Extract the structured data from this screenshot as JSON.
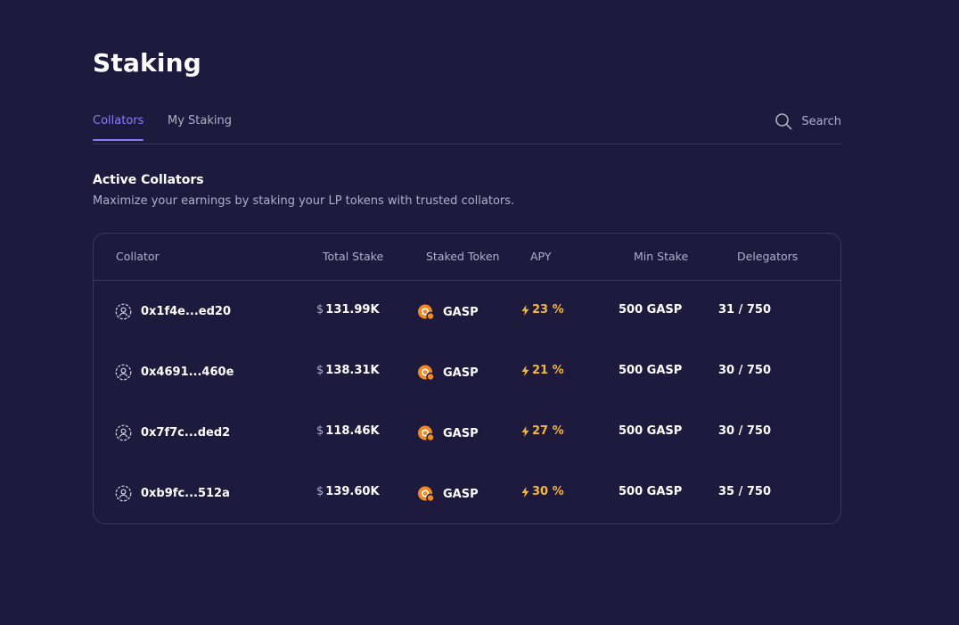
{
  "page": {
    "title": "Staking"
  },
  "tabs": [
    {
      "label": "Collators",
      "active": true
    },
    {
      "label": "My Staking",
      "active": false
    }
  ],
  "search": {
    "label": "Search"
  },
  "section": {
    "title": "Active Collators",
    "subtitle": "Maximize your earnings by staking your LP tokens with trusted collators."
  },
  "table": {
    "headers": {
      "collator": "Collator",
      "total_stake": "Total Stake",
      "staked_token": "Staked Token",
      "apy": "APY",
      "min_stake": "Min Stake",
      "delegators": "Delegators"
    },
    "currency_symbol": "$",
    "rows": [
      {
        "collator": "0x1f4e...ed20",
        "total_stake": "131.99K",
        "token": "GASP",
        "apy": "23 %",
        "min_stake": "500 GASP",
        "delegators": "31 / 750"
      },
      {
        "collator": "0x4691...460e",
        "total_stake": "138.31K",
        "token": "GASP",
        "apy": "21 %",
        "min_stake": "500 GASP",
        "delegators": "30 / 750"
      },
      {
        "collator": "0x7f7c...ded2",
        "total_stake": "118.46K",
        "token": "GASP",
        "apy": "27 %",
        "min_stake": "500 GASP",
        "delegators": "30 / 750"
      },
      {
        "collator": "0xb9fc...512a",
        "total_stake": "139.60K",
        "token": "GASP",
        "apy": "30 %",
        "min_stake": "500 GASP",
        "delegators": "35 / 750"
      }
    ]
  },
  "colors": {
    "background": "#1d1a3d",
    "accent": "#8b7cf6",
    "apy": "#f5b73b",
    "token": "#f08a24",
    "border": "#3a3660",
    "muted_text": "#aeb0c8"
  },
  "icons": {
    "search": "search-icon",
    "collator": "user-circle-icon",
    "token": "gasp-token-icon",
    "apy": "lightning-bolt-icon"
  }
}
